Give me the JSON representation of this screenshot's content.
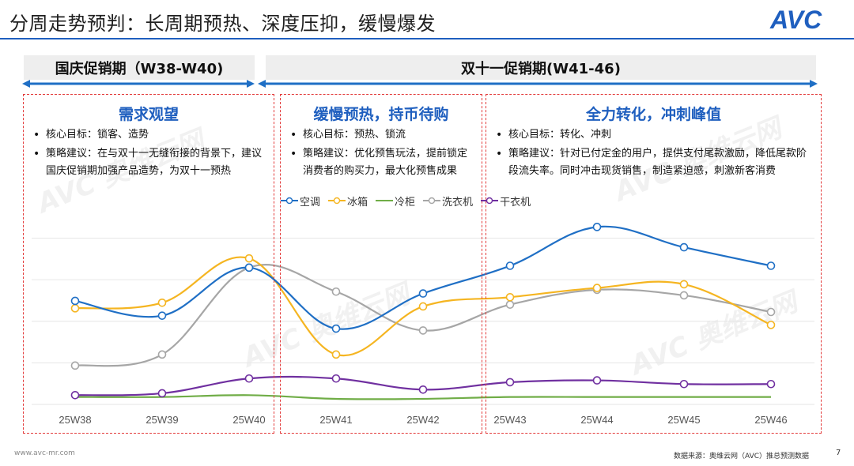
{
  "header": {
    "title": "分周走势预判：长周期预热、深度压抑，缓慢爆发",
    "logo_text": "AVC",
    "accent": "#1f5fbf"
  },
  "periods": [
    {
      "label": "国庆促销期（W38-W40)"
    },
    {
      "label": "双十一促销期(W41-46)"
    }
  ],
  "panels": [
    {
      "heading": "需求观望",
      "bullets": [
        "核心目标：锁客、造势",
        "策略建议：在与双十一无缝衔接的背景下，建议国庆促销期加强产品造势，为双十一预热"
      ]
    },
    {
      "heading": "缓慢预热，持币待购",
      "bullets": [
        "核心目标：预热、锁流",
        "策略建议：优化预售玩法，提前锁定消费者的购买力，最大化预售成果"
      ]
    },
    {
      "heading": "全力转化，冲刺峰值",
      "bullets": [
        "核心目标：转化、冲刺",
        "策略建议：针对已付定金的用户，提供支付尾款激励，降低尾款阶段流失率。同时冲击现货销售，制造紧迫感，刺激新客消费"
      ]
    }
  ],
  "chart_data": {
    "type": "line",
    "smooth": true,
    "x": [
      "25W38",
      "25W39",
      "25W40",
      "25W41",
      "25W42",
      "25W43",
      "25W44",
      "25W45",
      "25W46"
    ],
    "ylim": [
      0,
      100
    ],
    "y_axis_visible": false,
    "grid": "horizontal",
    "legend_position": "top",
    "series": [
      {
        "name": "空调",
        "color": "#1f6fc5",
        "values": [
          56,
          48,
          74,
          41,
          60,
          75,
          96,
          85,
          75
        ]
      },
      {
        "name": "冰箱",
        "color": "#f5b521",
        "values": [
          52,
          55,
          79,
          27,
          53,
          58,
          63,
          65,
          43
        ]
      },
      {
        "name": "冷柜",
        "color": "#70ad47",
        "values": [
          4,
          4,
          5,
          3,
          3,
          4,
          4,
          4,
          4
        ]
      },
      {
        "name": "洗衣机",
        "color": "#a6a6a6",
        "values": [
          21,
          27,
          74,
          61,
          40,
          54,
          62,
          59,
          50
        ]
      },
      {
        "name": "干衣机",
        "color": "#7030a0",
        "values": [
          5,
          6,
          14,
          14,
          8,
          12,
          13,
          11,
          11
        ]
      }
    ]
  },
  "watermark_text": "AVC 奥维云网",
  "footer": {
    "url": "www.avc-mr.com",
    "source": "数据来源：奥维云网（AVC）推总预测数据",
    "page": "7"
  }
}
